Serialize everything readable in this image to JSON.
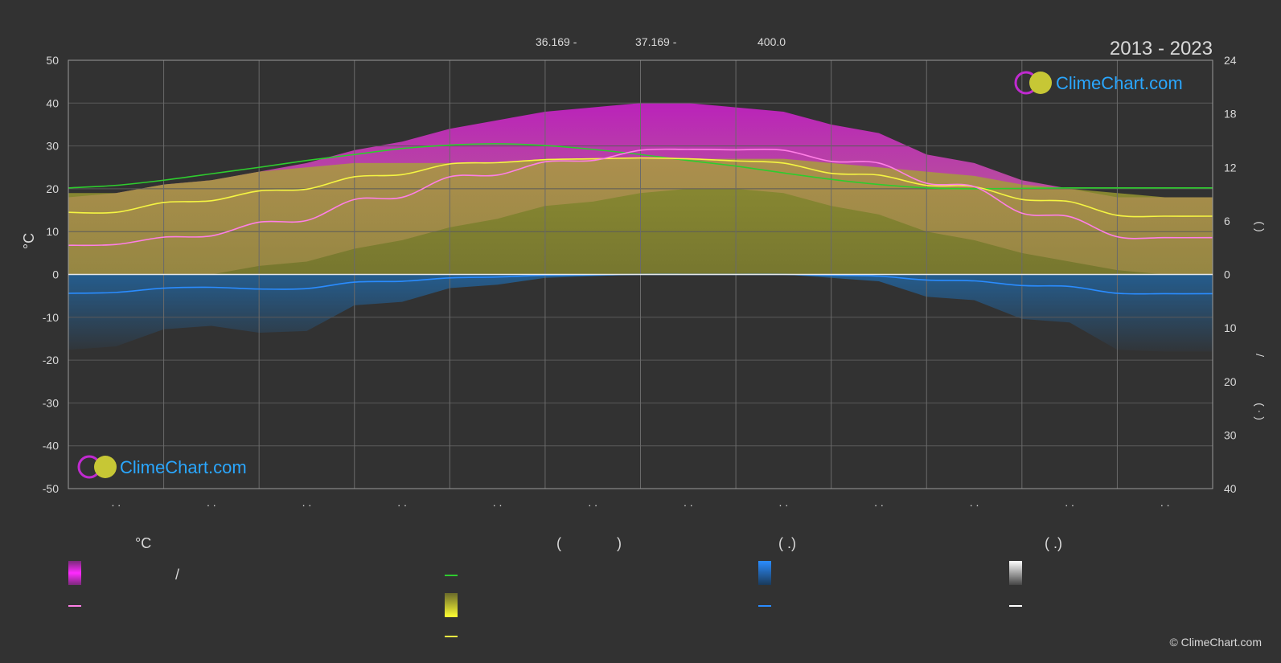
{
  "header": {
    "coord_lat": "36.169 -",
    "coord_lon": "37.169 -",
    "elevation": "400.0",
    "period": "2013 - 2023"
  },
  "logo": {
    "text": "ClimeChart.com"
  },
  "copyright": "© ClimeChart.com",
  "colors": {
    "background": "#323232",
    "sunshine_line": "#2ecc2e",
    "daylight_line": "#2ecc2e",
    "mean_temp_line": "#ff7fe6",
    "sunshine_hours_line": "#f5f542",
    "precip_line": "#2a8cff",
    "temp_band": "#d21fd2",
    "sun_band": "#b3b336",
    "precip_band": "#1f6fb5",
    "logo_blue": "#2aa7ff"
  },
  "legend": {
    "col1_header": "°C",
    "col1_sep": "/",
    "col2_header_open": "(",
    "col2_header_close": ")",
    "col3_header": "(   .)",
    "col4_header": "(   .)"
  },
  "right_axis_labels": {
    "upper": "(     )",
    "lower": "(  ·  )",
    "slash": "/"
  },
  "chart_data": {
    "type": "line",
    "title": "",
    "xlabel": "",
    "ylabel": "°C",
    "ylim": [
      -50,
      50
    ],
    "y_ticks": [
      50,
      40,
      30,
      20,
      10,
      0,
      -10,
      -20,
      -30,
      -40,
      -50
    ],
    "right_ticks_upper": [
      24,
      18,
      12,
      6,
      0
    ],
    "right_ticks_lower": [
      10,
      20,
      30,
      40
    ],
    "x_tick_labels": [
      ". .",
      ". .",
      ". .",
      ". .",
      ". .",
      ". .",
      ". .",
      ". .",
      ". .",
      ". .",
      ". .",
      ". ."
    ],
    "grid": true,
    "x": [
      0,
      0.5,
      1,
      1.5,
      2,
      2.5,
      3,
      3.5,
      4,
      4.5,
      5,
      5.5,
      6,
      6.5,
      7,
      7.5,
      8,
      8.5,
      9,
      9.5,
      10,
      10.5,
      11,
      11.5,
      12
    ],
    "series": [
      {
        "key": "daylight",
        "color": "#2ecc2e",
        "values": [
          20.2,
          20.8,
          22.0,
          23.5,
          25.0,
          26.6,
          28.0,
          29.4,
          30.2,
          30.5,
          30.1,
          29.2,
          28.0,
          26.6,
          25.3,
          23.7,
          22.2,
          21.0,
          20.2,
          20.0,
          20.1,
          20.2,
          20.2,
          20.2,
          20.2
        ]
      },
      {
        "key": "sunshine",
        "color": "#f5f542",
        "values": [
          14.5,
          14.5,
          16.8,
          17.2,
          19.5,
          19.9,
          22.8,
          23.3,
          25.8,
          26.1,
          26.8,
          27.0,
          27.2,
          27.0,
          26.5,
          26.0,
          23.6,
          23.2,
          20.8,
          20.5,
          17.5,
          17.0,
          13.8,
          13.6,
          13.6
        ]
      },
      {
        "key": "mean_temp",
        "color": "#ff7fe6",
        "values": [
          6.8,
          7.0,
          8.7,
          9.0,
          12.2,
          12.6,
          17.5,
          18.0,
          22.8,
          23.2,
          26.3,
          26.6,
          29.0,
          29.2,
          29.1,
          29.0,
          26.4,
          26.0,
          21.3,
          20.5,
          14.3,
          13.5,
          8.8,
          8.6,
          8.6
        ]
      },
      {
        "key": "precip",
        "color": "#2a8cff",
        "values": [
          -4.4,
          -4.2,
          -3.2,
          -3.0,
          -3.4,
          -3.3,
          -1.8,
          -1.6,
          -0.8,
          -0.6,
          -0.2,
          -0.1,
          0.0,
          0.0,
          0.0,
          0.0,
          -0.2,
          -0.4,
          -1.3,
          -1.5,
          -2.6,
          -2.8,
          -4.4,
          -4.5,
          -4.5
        ]
      }
    ],
    "temp_band": {
      "min": [
        0,
        0,
        0,
        0,
        2,
        3,
        6,
        8,
        11,
        13,
        16,
        17,
        19,
        20,
        20,
        19,
        16,
        14,
        10,
        8,
        5,
        3,
        1,
        0,
        0
      ],
      "max": [
        18,
        19,
        21,
        22,
        24,
        26,
        29,
        31,
        34,
        36,
        38,
        39,
        40,
        40,
        39,
        38,
        35,
        33,
        28,
        26,
        22,
        20,
        18,
        18,
        18
      ]
    },
    "sun_band": {
      "max": [
        19,
        19,
        21,
        22,
        24,
        25,
        26,
        26,
        26,
        26,
        27,
        27,
        27,
        27,
        27,
        27,
        26,
        25,
        24,
        23,
        21,
        20,
        19,
        18,
        18
      ]
    }
  }
}
